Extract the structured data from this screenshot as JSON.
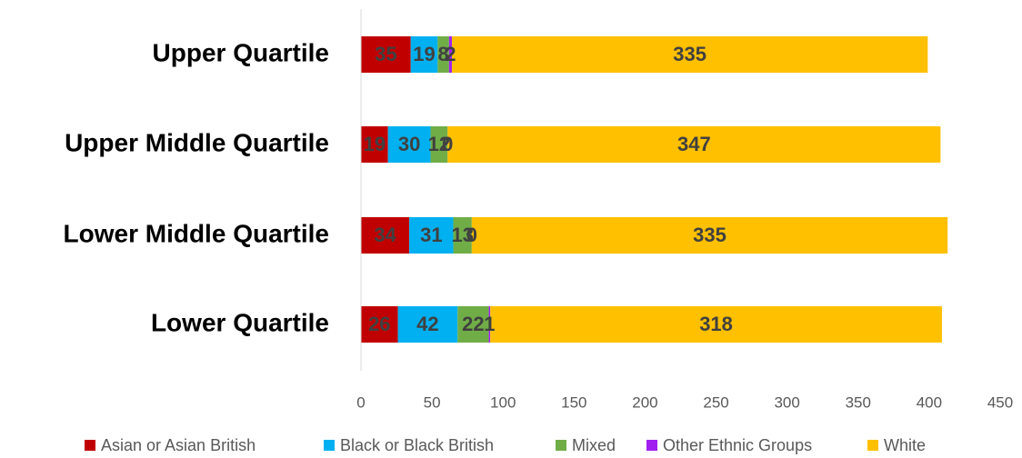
{
  "chart_data": {
    "type": "bar",
    "orientation": "horizontal",
    "stacked": true,
    "categories": [
      "Upper Quartile",
      "Upper Middle Quartile",
      "Lower Middle Quartile",
      "Lower Quartile"
    ],
    "series": [
      {
        "name": "Asian or Asian British",
        "color": "#C00000",
        "values": [
          35,
          19,
          34,
          26
        ]
      },
      {
        "name": "Black or Black British",
        "color": "#00B0F0",
        "values": [
          19,
          30,
          31,
          42
        ]
      },
      {
        "name": "Mixed",
        "color": "#70AD47",
        "values": [
          8,
          12,
          13,
          22
        ]
      },
      {
        "name": "Other Ethnic Groups",
        "color": "#A020F0",
        "values": [
          2,
          0,
          0,
          1
        ]
      },
      {
        "name": "White",
        "color": "#FFC000",
        "values": [
          335,
          347,
          335,
          318
        ]
      }
    ],
    "xlim": [
      0,
      450
    ],
    "xticks": [
      0,
      50,
      100,
      150,
      200,
      250,
      300,
      350,
      400,
      450
    ],
    "data_labels": [
      [
        "35",
        "19",
        "8",
        "2",
        "335"
      ],
      [
        "19",
        "30",
        "12",
        "0",
        "347"
      ],
      [
        "34",
        "31",
        "13",
        "0",
        "335"
      ],
      [
        "26",
        "42",
        "22",
        "1",
        "318"
      ]
    ],
    "legend_position": "bottom",
    "grid": false
  }
}
